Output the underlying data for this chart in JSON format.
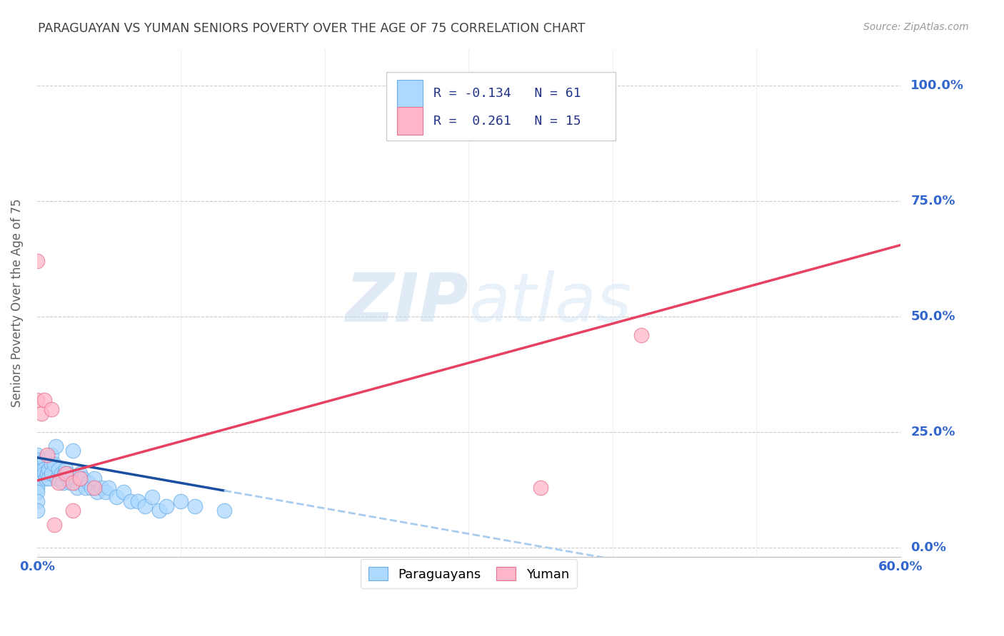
{
  "title": "PARAGUAYAN VS YUMAN SENIORS POVERTY OVER THE AGE OF 75 CORRELATION CHART",
  "source": "Source: ZipAtlas.com",
  "ylabel_label": "Seniors Poverty Over the Age of 75",
  "ylabel_ticks": [
    "0.0%",
    "25.0%",
    "50.0%",
    "75.0%",
    "100.0%"
  ],
  "xlim": [
    0.0,
    0.6
  ],
  "ylim": [
    -0.02,
    1.08
  ],
  "watermark_zip": "ZIP",
  "watermark_atlas": "atlas",
  "legend_text": [
    [
      "R = -0.134",
      "N = 61"
    ],
    [
      "R =  0.261",
      "N = 15"
    ]
  ],
  "paraguayan_x": [
    0.0,
    0.0,
    0.0,
    0.0,
    0.0,
    0.0,
    0.0,
    0.0,
    0.0,
    0.0,
    0.0,
    0.0,
    0.003,
    0.004,
    0.005,
    0.005,
    0.005,
    0.006,
    0.007,
    0.008,
    0.008,
    0.01,
    0.01,
    0.01,
    0.012,
    0.013,
    0.014,
    0.015,
    0.016,
    0.017,
    0.018,
    0.019,
    0.02,
    0.021,
    0.022,
    0.023,
    0.024,
    0.025,
    0.027,
    0.028,
    0.03,
    0.032,
    0.034,
    0.036,
    0.038,
    0.04,
    0.042,
    0.045,
    0.048,
    0.05,
    0.055,
    0.06,
    0.065,
    0.07,
    0.075,
    0.08,
    0.085,
    0.09,
    0.1,
    0.11,
    0.13
  ],
  "paraguayan_y": [
    0.2,
    0.19,
    0.18,
    0.17,
    0.16,
    0.155,
    0.15,
    0.14,
    0.13,
    0.12,
    0.1,
    0.08,
    0.18,
    0.17,
    0.19,
    0.17,
    0.16,
    0.15,
    0.16,
    0.17,
    0.15,
    0.2,
    0.18,
    0.16,
    0.18,
    0.22,
    0.15,
    0.17,
    0.15,
    0.16,
    0.14,
    0.16,
    0.17,
    0.16,
    0.15,
    0.14,
    0.15,
    0.21,
    0.14,
    0.13,
    0.16,
    0.15,
    0.13,
    0.14,
    0.13,
    0.15,
    0.12,
    0.13,
    0.12,
    0.13,
    0.11,
    0.12,
    0.1,
    0.1,
    0.09,
    0.11,
    0.08,
    0.09,
    0.1,
    0.09,
    0.08
  ],
  "yuman_x": [
    0.0,
    0.0,
    0.003,
    0.005,
    0.007,
    0.01,
    0.012,
    0.015,
    0.02,
    0.025,
    0.025,
    0.03,
    0.04,
    0.35,
    0.42
  ],
  "yuman_y": [
    0.62,
    0.32,
    0.29,
    0.32,
    0.2,
    0.3,
    0.05,
    0.14,
    0.16,
    0.14,
    0.08,
    0.15,
    0.13,
    0.13,
    0.46
  ],
  "blue_color": "#ADD8FF",
  "blue_edge": "#6AAEE8",
  "pink_color": "#FFB6C8",
  "pink_edge": "#E87090",
  "blue_line_solid_color": "#1A4FA0",
  "blue_line_dashed_color": "#A8CCEE",
  "pink_line_color": "#E84060",
  "grid_color": "#CCCCCC",
  "title_color": "#404040",
  "axis_label_color": "#606060",
  "tick_color": "#3366CC",
  "background_color": "#FFFFFF",
  "blue_line_intercept": 0.195,
  "blue_line_slope": -0.55,
  "pink_line_intercept": 0.145,
  "pink_line_slope": 0.85
}
